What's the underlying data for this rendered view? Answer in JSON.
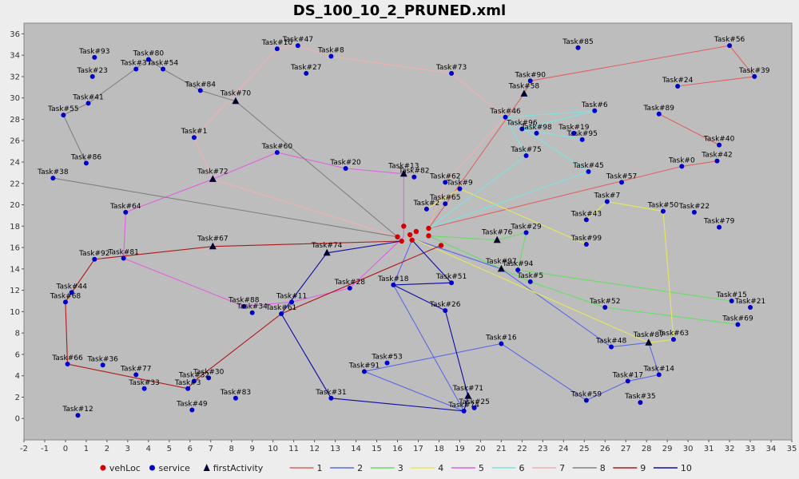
{
  "chart_data": {
    "type": "scatter",
    "title": "DS_100_10_2_PRUNED.xml",
    "xlim": [
      -2,
      35
    ],
    "ylim": [
      -2,
      37
    ],
    "x_ticks": [
      -2,
      -1,
      0,
      1,
      2,
      3,
      4,
      5,
      6,
      7,
      8,
      9,
      10,
      11,
      12,
      13,
      14,
      15,
      16,
      17,
      18,
      19,
      20,
      21,
      22,
      23,
      24,
      25,
      26,
      27,
      28,
      29,
      30,
      31,
      32,
      33,
      34,
      35
    ],
    "y_ticks": [
      0,
      2,
      4,
      6,
      8,
      10,
      12,
      14,
      16,
      18,
      20,
      22,
      24,
      26,
      28,
      30,
      32,
      34,
      36
    ],
    "grid": false,
    "background": "#bdbdbd",
    "legend_position": "bottom",
    "legend": [
      {
        "label": "vehLoc",
        "kind": "dot",
        "color": "#d40000"
      },
      {
        "label": "service",
        "kind": "dot",
        "color": "#0000cc"
      },
      {
        "label": "firstActivity",
        "kind": "triangle",
        "color": "#000033"
      },
      {
        "label": "1",
        "kind": "line",
        "color": "#e06262"
      },
      {
        "label": "2",
        "kind": "line",
        "color": "#5a6ae6"
      },
      {
        "label": "3",
        "kind": "line",
        "color": "#66dd66"
      },
      {
        "label": "4",
        "kind": "line",
        "color": "#e8e85a"
      },
      {
        "label": "5",
        "kind": "line",
        "color": "#e060e0"
      },
      {
        "label": "6",
        "kind": "line",
        "color": "#7ae4e4"
      },
      {
        "label": "7",
        "kind": "line",
        "color": "#f0b0b0"
      },
      {
        "label": "8",
        "kind": "line",
        "color": "#808080"
      },
      {
        "label": "9",
        "kind": "line",
        "color": "#b01818"
      },
      {
        "label": "10",
        "kind": "line",
        "color": "#0c0ca8"
      }
    ],
    "vehicle_locations": [
      [
        16.3,
        18.0
      ],
      [
        16.9,
        17.5
      ],
      [
        17.5,
        17.8
      ],
      [
        16.6,
        17.2
      ],
      [
        16.0,
        17.0
      ],
      [
        16.2,
        16.6
      ],
      [
        16.7,
        16.7
      ],
      [
        17.5,
        17.1
      ],
      [
        18.1,
        16.2
      ]
    ],
    "tasks": [
      {
        "label": "Task#93",
        "x": 1.4,
        "y": 33.8
      },
      {
        "label": "Task#80",
        "x": 4.0,
        "y": 33.6
      },
      {
        "label": "Task#37",
        "x": 3.4,
        "y": 32.7
      },
      {
        "label": "Task#54",
        "x": 4.7,
        "y": 32.7
      },
      {
        "label": "Task#23",
        "x": 1.3,
        "y": 32.0
      },
      {
        "label": "Task#41",
        "x": 1.1,
        "y": 29.5
      },
      {
        "label": "Task#55",
        "x": -0.1,
        "y": 28.4
      },
      {
        "label": "Task#84",
        "x": 6.5,
        "y": 30.7
      },
      {
        "label": "Task#86",
        "x": 1.0,
        "y": 23.9
      },
      {
        "label": "Task#38",
        "x": -0.6,
        "y": 22.5
      },
      {
        "label": "Task#10",
        "x": 10.2,
        "y": 34.6
      },
      {
        "label": "Task#47",
        "x": 11.2,
        "y": 34.9
      },
      {
        "label": "Task#8",
        "x": 12.8,
        "y": 33.9
      },
      {
        "label": "Task#27",
        "x": 11.6,
        "y": 32.3
      },
      {
        "label": "Task#73",
        "x": 18.6,
        "y": 32.3
      },
      {
        "label": "Task#85",
        "x": 24.7,
        "y": 34.7
      },
      {
        "label": "Task#56",
        "x": 32.0,
        "y": 34.9
      },
      {
        "label": "Task#39",
        "x": 33.2,
        "y": 32.0
      },
      {
        "label": "Task#90",
        "x": 22.4,
        "y": 31.6
      },
      {
        "label": "Task#24",
        "x": 29.5,
        "y": 31.1
      },
      {
        "label": "Task#89",
        "x": 28.6,
        "y": 28.5
      },
      {
        "label": "Task#46",
        "x": 21.2,
        "y": 28.2
      },
      {
        "label": "Task#6",
        "x": 25.5,
        "y": 28.8
      },
      {
        "label": "Task#96",
        "x": 22.0,
        "y": 27.1
      },
      {
        "label": "Task#98",
        "x": 22.7,
        "y": 26.7
      },
      {
        "label": "Task#19",
        "x": 24.5,
        "y": 26.7
      },
      {
        "label": "Task#95",
        "x": 24.9,
        "y": 26.1
      },
      {
        "label": "Task#40",
        "x": 31.5,
        "y": 25.6
      },
      {
        "label": "Task#1",
        "x": 6.2,
        "y": 26.3
      },
      {
        "label": "Task#60",
        "x": 10.2,
        "y": 24.9
      },
      {
        "label": "Task#75",
        "x": 22.2,
        "y": 24.6
      },
      {
        "label": "Task#0",
        "x": 29.7,
        "y": 23.6
      },
      {
        "label": "Task#42",
        "x": 31.4,
        "y": 24.1
      },
      {
        "label": "Task#20",
        "x": 13.5,
        "y": 23.4
      },
      {
        "label": "Task#82",
        "x": 16.8,
        "y": 22.6
      },
      {
        "label": "Task#45",
        "x": 25.2,
        "y": 23.1
      },
      {
        "label": "Task#62",
        "x": 18.3,
        "y": 22.1
      },
      {
        "label": "Task#57",
        "x": 26.8,
        "y": 22.1
      },
      {
        "label": "Task#9",
        "x": 19.0,
        "y": 21.5
      },
      {
        "label": "Task#65",
        "x": 18.3,
        "y": 20.1
      },
      {
        "label": "Task#2",
        "x": 17.4,
        "y": 19.6
      },
      {
        "label": "Task#7",
        "x": 26.1,
        "y": 20.3
      },
      {
        "label": "Task#50",
        "x": 28.8,
        "y": 19.4
      },
      {
        "label": "Task#22",
        "x": 30.3,
        "y": 19.3
      },
      {
        "label": "Task#43",
        "x": 25.1,
        "y": 18.6
      },
      {
        "label": "Task#64",
        "x": 2.9,
        "y": 19.3
      },
      {
        "label": "Task#79",
        "x": 31.5,
        "y": 17.9
      },
      {
        "label": "Task#29",
        "x": 22.2,
        "y": 17.4
      },
      {
        "label": "Task#99",
        "x": 25.1,
        "y": 16.3
      },
      {
        "label": "Task#92",
        "x": 1.4,
        "y": 14.9
      },
      {
        "label": "Task#81",
        "x": 2.8,
        "y": 15.0
      },
      {
        "label": "Task#94",
        "x": 21.8,
        "y": 13.9
      },
      {
        "label": "Task#5",
        "x": 22.4,
        "y": 12.8
      },
      {
        "label": "Task#51",
        "x": 18.6,
        "y": 12.7
      },
      {
        "label": "Task#18",
        "x": 15.8,
        "y": 12.5
      },
      {
        "label": "Task#44",
        "x": 0.3,
        "y": 11.8
      },
      {
        "label": "Task#68",
        "x": 0.0,
        "y": 10.9
      },
      {
        "label": "Task#28",
        "x": 13.7,
        "y": 12.2
      },
      {
        "label": "Task#15",
        "x": 32.1,
        "y": 11.0
      },
      {
        "label": "Task#21",
        "x": 33.0,
        "y": 10.4
      },
      {
        "label": "Task#52",
        "x": 26.0,
        "y": 10.4
      },
      {
        "label": "Task#88",
        "x": 8.6,
        "y": 10.5
      },
      {
        "label": "Task#11",
        "x": 10.9,
        "y": 10.9
      },
      {
        "label": "Task#34",
        "x": 9.0,
        "y": 9.9
      },
      {
        "label": "Task#61",
        "x": 10.4,
        "y": 9.8
      },
      {
        "label": "Task#26",
        "x": 18.3,
        "y": 10.1
      },
      {
        "label": "Task#69",
        "x": 32.4,
        "y": 8.8
      },
      {
        "label": "Task#63",
        "x": 29.3,
        "y": 7.4
      },
      {
        "label": "Task#48",
        "x": 26.3,
        "y": 6.7
      },
      {
        "label": "Task#16",
        "x": 21.0,
        "y": 7.0
      },
      {
        "label": "Task#66",
        "x": 0.1,
        "y": 5.1
      },
      {
        "label": "Task#36",
        "x": 1.8,
        "y": 5.0
      },
      {
        "label": "Task#53",
        "x": 15.5,
        "y": 5.2
      },
      {
        "label": "Task#77",
        "x": 3.4,
        "y": 4.1
      },
      {
        "label": "Task#91",
        "x": 14.4,
        "y": 4.4
      },
      {
        "label": "Task#14",
        "x": 28.6,
        "y": 4.1
      },
      {
        "label": "Task#30",
        "x": 6.9,
        "y": 3.8
      },
      {
        "label": "Task#32",
        "x": 6.2,
        "y": 3.5
      },
      {
        "label": "Task#17",
        "x": 27.1,
        "y": 3.5
      },
      {
        "label": "Task#33",
        "x": 3.8,
        "y": 2.8
      },
      {
        "label": "Task#3",
        "x": 5.9,
        "y": 2.8
      },
      {
        "label": "Task#83",
        "x": 8.2,
        "y": 1.9
      },
      {
        "label": "Task#31",
        "x": 12.8,
        "y": 1.9
      },
      {
        "label": "Task#59",
        "x": 25.1,
        "y": 1.7
      },
      {
        "label": "Task#35",
        "x": 27.7,
        "y": 1.5
      },
      {
        "label": "Task#49",
        "x": 6.1,
        "y": 0.8
      },
      {
        "label": "Task#74",
        "x": 19.2,
        "y": 0.7
      },
      {
        "label": "Task#25",
        "x": 19.7,
        "y": 1.0
      },
      {
        "label": "Task#12",
        "x": 0.6,
        "y": 0.3
      }
    ],
    "first_activities": [
      {
        "label": "Task#70",
        "x": 8.2,
        "y": 29.7
      },
      {
        "label": "Task#58",
        "x": 22.1,
        "y": 30.4
      },
      {
        "label": "Task#13",
        "x": 16.3,
        "y": 22.9
      },
      {
        "label": "Task#72",
        "x": 7.1,
        "y": 22.4
      },
      {
        "label": "Task#67",
        "x": 7.1,
        "y": 16.1
      },
      {
        "label": "Task#76",
        "x": 20.8,
        "y": 16.7
      },
      {
        "label": "Task#74",
        "x": 12.6,
        "y": 15.5
      },
      {
        "label": "Task#97",
        "x": 21.0,
        "y": 14.0
      },
      {
        "label": "Task#87",
        "x": 28.1,
        "y": 7.1
      },
      {
        "label": "Task#71",
        "x": 19.4,
        "y": 2.1
      }
    ],
    "series": [
      {
        "name": "1",
        "color": "#e06262",
        "path": [
          [
            17.5,
            17.8
          ],
          [
            22.1,
            30.4
          ],
          [
            22.4,
            31.6
          ],
          [
            32.0,
            34.9
          ],
          [
            33.2,
            32.0
          ],
          [
            29.5,
            31.1
          ]
        ]
      },
      {
        "name": "1",
        "color": "#e06262",
        "path": [
          [
            28.6,
            28.5
          ],
          [
            31.5,
            25.6
          ]
        ]
      },
      {
        "name": "1",
        "color": "#e06262",
        "path": [
          [
            17.5,
            17.8
          ],
          [
            29.7,
            23.6
          ],
          [
            31.4,
            24.1
          ]
        ]
      },
      {
        "name": "2",
        "color": "#5a6ae6",
        "path": [
          [
            16.9,
            16.7
          ],
          [
            21.0,
            14.0
          ],
          [
            26.3,
            6.7
          ],
          [
            28.1,
            7.1
          ],
          [
            28.6,
            4.1
          ],
          [
            27.1,
            3.5
          ],
          [
            25.1,
            1.7
          ],
          [
            21.0,
            7.0
          ],
          [
            14.4,
            4.4
          ],
          [
            19.2,
            0.7
          ],
          [
            15.8,
            12.5
          ],
          [
            16.7,
            16.7
          ]
        ]
      },
      {
        "name": "3",
        "color": "#66dd66",
        "path": [
          [
            17.5,
            17.1
          ],
          [
            20.8,
            16.7
          ],
          [
            22.2,
            17.4
          ],
          [
            21.8,
            13.9
          ],
          [
            32.1,
            11.0
          ]
        ]
      },
      {
        "name": "3",
        "color": "#66dd66",
        "path": [
          [
            17.5,
            17.1
          ],
          [
            22.4,
            12.8
          ],
          [
            26.0,
            10.4
          ],
          [
            32.4,
            8.8
          ]
        ]
      },
      {
        "name": "4",
        "color": "#e8e85a",
        "path": [
          [
            17.4,
            19.6
          ],
          [
            19.0,
            21.5
          ],
          [
            25.1,
            16.3
          ]
        ]
      },
      {
        "name": "4",
        "color": "#e8e85a",
        "path": [
          [
            16.9,
            16.7
          ],
          [
            28.1,
            7.1
          ],
          [
            29.3,
            7.4
          ],
          [
            28.8,
            19.4
          ],
          [
            26.1,
            20.3
          ],
          [
            25.1,
            18.6
          ]
        ]
      },
      {
        "name": "5",
        "color": "#e060e0",
        "path": [
          [
            16.3,
            17.0
          ],
          [
            16.3,
            22.9
          ],
          [
            13.5,
            23.4
          ],
          [
            10.2,
            24.9
          ],
          [
            7.1,
            22.4
          ],
          [
            2.9,
            19.3
          ],
          [
            2.8,
            15.0
          ],
          [
            8.6,
            10.5
          ],
          [
            10.9,
            10.9
          ],
          [
            13.7,
            12.2
          ],
          [
            16.3,
            17.0
          ]
        ]
      },
      {
        "name": "6",
        "color": "#7ae4e4",
        "path": [
          [
            17.5,
            17.8
          ],
          [
            25.2,
            23.1
          ],
          [
            21.2,
            28.2
          ],
          [
            25.5,
            28.8
          ],
          [
            22.0,
            27.1
          ],
          [
            24.9,
            26.1
          ]
        ]
      },
      {
        "name": "6",
        "color": "#7ae4e4",
        "path": [
          [
            17.5,
            17.8
          ],
          [
            22.2,
            24.6
          ],
          [
            21.2,
            28.2
          ]
        ]
      },
      {
        "name": "7",
        "color": "#f0b0b0",
        "path": [
          [
            16.0,
            17.0
          ],
          [
            7.1,
            22.4
          ],
          [
            6.2,
            26.3
          ],
          [
            10.2,
            34.6
          ],
          [
            11.2,
            34.9
          ],
          [
            12.8,
            33.9
          ],
          [
            18.6,
            32.3
          ],
          [
            21.2,
            28.2
          ],
          [
            18.3,
            22.1
          ],
          [
            17.5,
            17.8
          ]
        ]
      },
      {
        "name": "8",
        "color": "#808080",
        "path": [
          [
            16.0,
            17.0
          ],
          [
            -0.6,
            22.5
          ]
        ]
      },
      {
        "name": "8",
        "color": "#808080",
        "path": [
          [
            16.0,
            17.0
          ],
          [
            8.2,
            29.7
          ],
          [
            6.5,
            30.7
          ],
          [
            4.7,
            32.7
          ],
          [
            4.0,
            33.6
          ],
          [
            1.1,
            29.5
          ],
          [
            -0.1,
            28.4
          ],
          [
            1.0,
            23.9
          ]
        ]
      },
      {
        "name": "9",
        "color": "#b01818",
        "path": [
          [
            16.2,
            16.6
          ],
          [
            7.1,
            16.1
          ],
          [
            1.4,
            14.9
          ],
          [
            0.3,
            11.8
          ],
          [
            0.0,
            10.9
          ],
          [
            0.1,
            5.1
          ],
          [
            5.9,
            2.8
          ],
          [
            6.2,
            3.5
          ],
          [
            10.4,
            9.8
          ],
          [
            18.1,
            16.2
          ]
        ]
      },
      {
        "name": "10",
        "color": "#0c0ca8",
        "path": [
          [
            16.2,
            16.6
          ],
          [
            12.6,
            15.5
          ],
          [
            10.4,
            9.8
          ],
          [
            12.8,
            1.9
          ],
          [
            19.2,
            0.7
          ],
          [
            19.4,
            2.1
          ],
          [
            18.3,
            10.1
          ],
          [
            15.8,
            12.5
          ],
          [
            18.6,
            12.7
          ],
          [
            16.7,
            16.7
          ]
        ]
      }
    ]
  }
}
